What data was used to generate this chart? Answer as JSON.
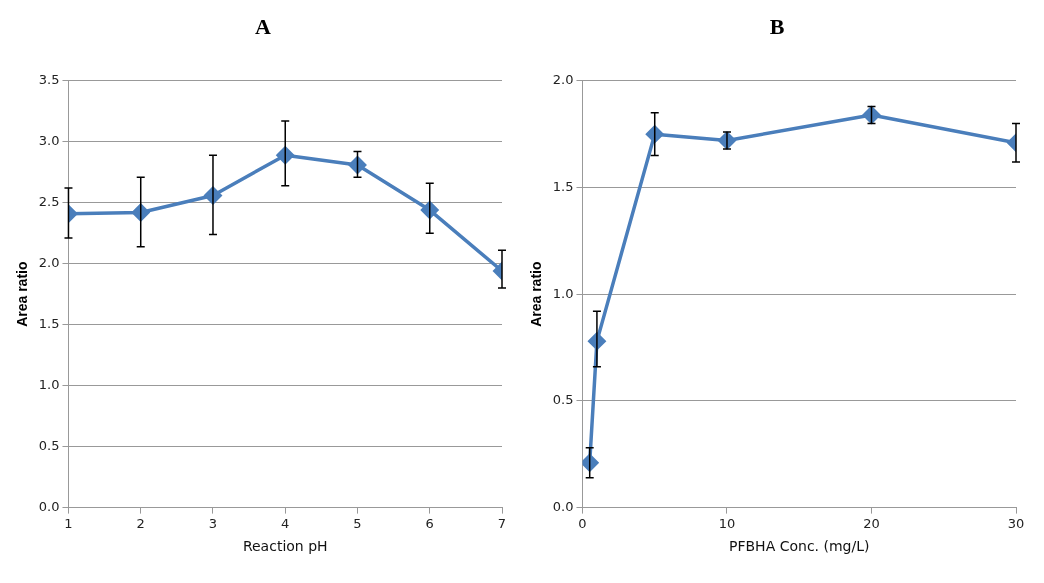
{
  "chart_data": [
    {
      "type": "line",
      "title": "A",
      "xlabel": "Reaction pH",
      "ylabel": "Area ratio",
      "x": [
        1,
        2,
        3,
        4,
        5,
        6,
        7
      ],
      "xlim": [
        1,
        7
      ],
      "xticks": [
        1,
        2,
        3,
        4,
        5,
        6,
        7
      ],
      "ylim": [
        0,
        3.5
      ],
      "yticks": [
        {
          "value": 0,
          "label": "0.0"
        },
        {
          "value": 0.5,
          "label": "0.5"
        },
        {
          "value": 1,
          "label": "1.0"
        },
        {
          "value": 1.5,
          "label": "1.5"
        },
        {
          "value": 2,
          "label": "2.0"
        },
        {
          "value": 2.5,
          "label": "2.5"
        },
        {
          "value": 3,
          "label": "3.0"
        },
        {
          "value": 3.5,
          "label": "3.5"
        }
      ],
      "grid": "y",
      "legend": false,
      "marker": "diamond",
      "line_style": "solid",
      "series": [
        {
          "color": "#4a7ebb",
          "values": [
            2.41,
            2.42,
            2.56,
            2.89,
            2.81,
            2.44,
            1.94
          ],
          "errors": [
            [
              2.21,
              2.62
            ],
            [
              2.14,
              2.71
            ],
            [
              2.24,
              2.89
            ],
            [
              2.64,
              3.17
            ],
            [
              2.71,
              2.92
            ],
            [
              2.25,
              2.66
            ],
            [
              1.8,
              2.11
            ]
          ]
        }
      ]
    },
    {
      "type": "line",
      "title": "B",
      "xlabel": "PFBHA Conc. (mg/L)",
      "ylabel": "Area ratio",
      "x": [
        0.5,
        1,
        5,
        10,
        20,
        30
      ],
      "xlim": [
        0,
        30
      ],
      "xticks": [
        0,
        10,
        20,
        30
      ],
      "ylim": [
        0,
        2
      ],
      "yticks": [
        {
          "value": 0,
          "label": "0.0"
        },
        {
          "value": 0.5,
          "label": "0.5"
        },
        {
          "value": 1,
          "label": "1.0"
        },
        {
          "value": 1.5,
          "label": "1.5"
        },
        {
          "value": 2,
          "label": "2.0"
        }
      ],
      "grid": "y",
      "legend": false,
      "marker": "diamond",
      "line_style": "solid",
      "series": [
        {
          "color": "#4a7ebb",
          "values": [
            0.21,
            0.78,
            1.75,
            1.72,
            1.84,
            1.71
          ],
          "errors": [
            [
              0.14,
              0.28
            ],
            [
              0.66,
              0.92
            ],
            [
              1.65,
              1.85
            ],
            [
              1.68,
              1.76
            ],
            [
              1.8,
              1.88
            ],
            [
              1.62,
              1.8
            ]
          ]
        }
      ]
    }
  ]
}
